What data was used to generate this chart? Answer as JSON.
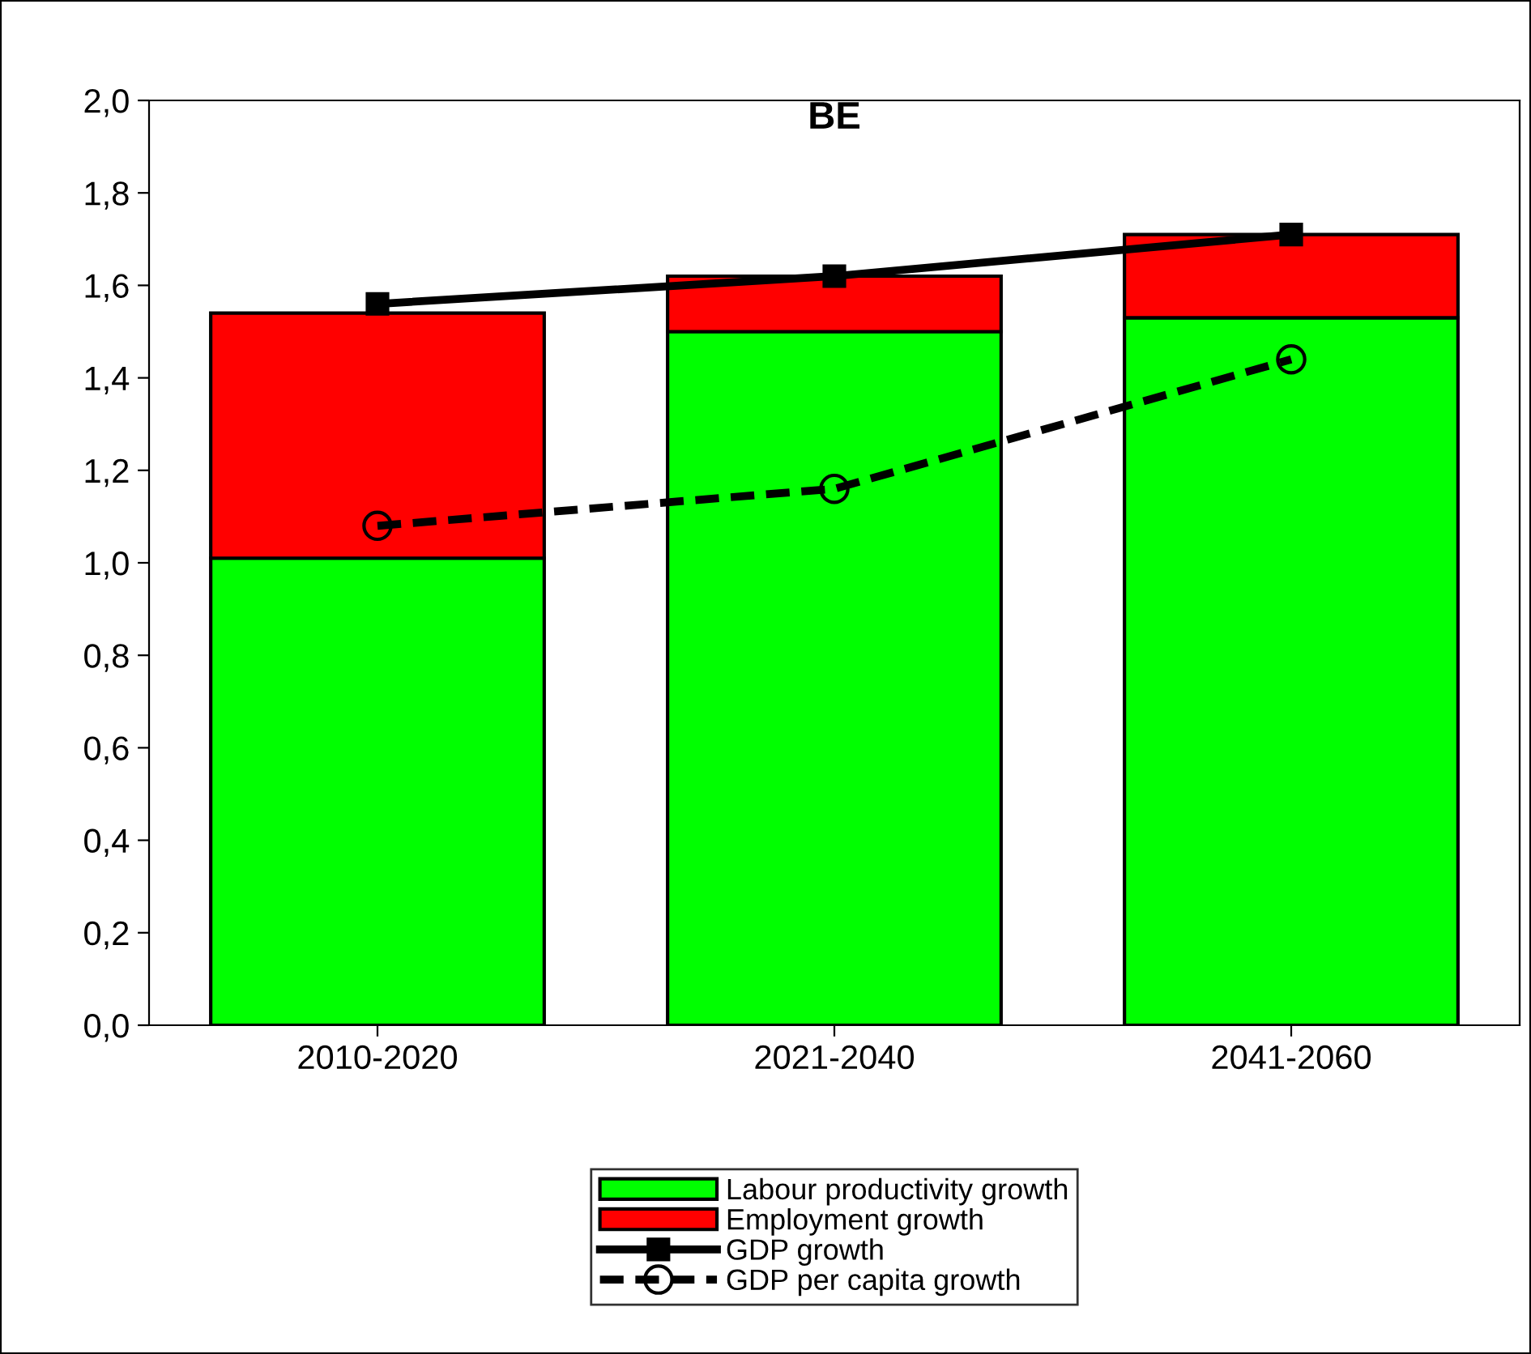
{
  "chart_data": {
    "type": "bar",
    "title": "BE",
    "stacked": true,
    "categories": [
      "2010-2020",
      "2021-2040",
      "2041-2060"
    ],
    "series": [
      {
        "name": "Labour productivity growth",
        "color": "#00ff00",
        "values": [
          1.01,
          1.5,
          1.53
        ]
      },
      {
        "name": "Employment growth",
        "color": "#ff0000",
        "values": [
          0.53,
          0.12,
          0.18
        ]
      },
      {
        "name": "GDP growth",
        "type": "line",
        "color": "#000000",
        "marker": "square",
        "line_style": "solid",
        "values": [
          1.56,
          1.62,
          1.71
        ]
      },
      {
        "name": "GDP per capita growth",
        "type": "line",
        "color": "#000000",
        "marker": "circle",
        "line_style": "dashed",
        "values": [
          1.08,
          1.16,
          1.44
        ]
      }
    ],
    "ylim": [
      0,
      2
    ],
    "yticks": [
      {
        "value": 0,
        "label": "0,0"
      },
      {
        "value": 0.2,
        "label": "0,2"
      },
      {
        "value": 0.4,
        "label": "0,4"
      },
      {
        "value": 0.6,
        "label": "0,6"
      },
      {
        "value": 0.8,
        "label": "0,8"
      },
      {
        "value": 1.0,
        "label": "1,0"
      },
      {
        "value": 1.2,
        "label": "1,2"
      },
      {
        "value": 1.4,
        "label": "1,4"
      },
      {
        "value": 1.6,
        "label": "1,6"
      },
      {
        "value": 1.8,
        "label": "1,8"
      },
      {
        "value": 2.0,
        "label": "2,0"
      }
    ],
    "grid": false,
    "legend": "bottom"
  }
}
